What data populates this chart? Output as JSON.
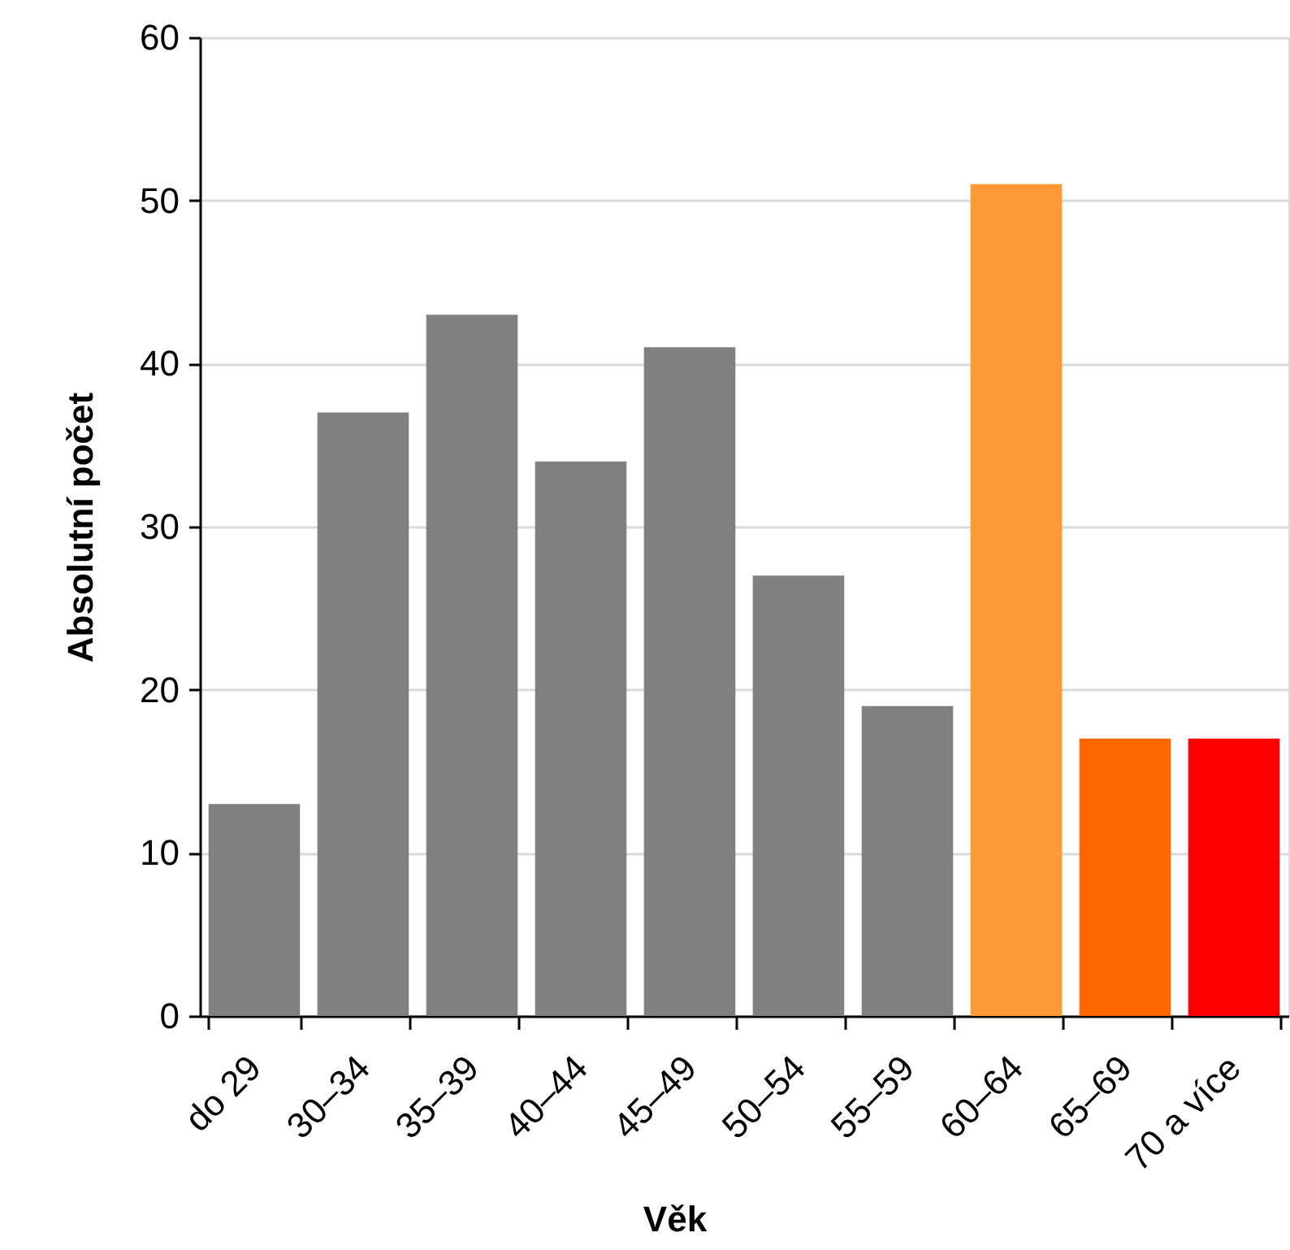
{
  "chart_data": {
    "type": "bar",
    "xlabel": "Věk",
    "ylabel": "Absolutní počet",
    "categories": [
      "do 29",
      "30–34",
      "35–39",
      "40–44",
      "45–49",
      "50–54",
      "55–59",
      "60–64",
      "65–69",
      "70 a více"
    ],
    "values": [
      13,
      37,
      43,
      34,
      41,
      27,
      19,
      51,
      17,
      17
    ],
    "colors": [
      "#808080",
      "#808080",
      "#808080",
      "#808080",
      "#808080",
      "#808080",
      "#808080",
      "#ff9933",
      "#ff6600",
      "#ff0000"
    ],
    "ylim": [
      0,
      60
    ],
    "yticks": [
      0,
      10,
      20,
      30,
      40,
      50,
      60
    ],
    "grid": "y"
  }
}
